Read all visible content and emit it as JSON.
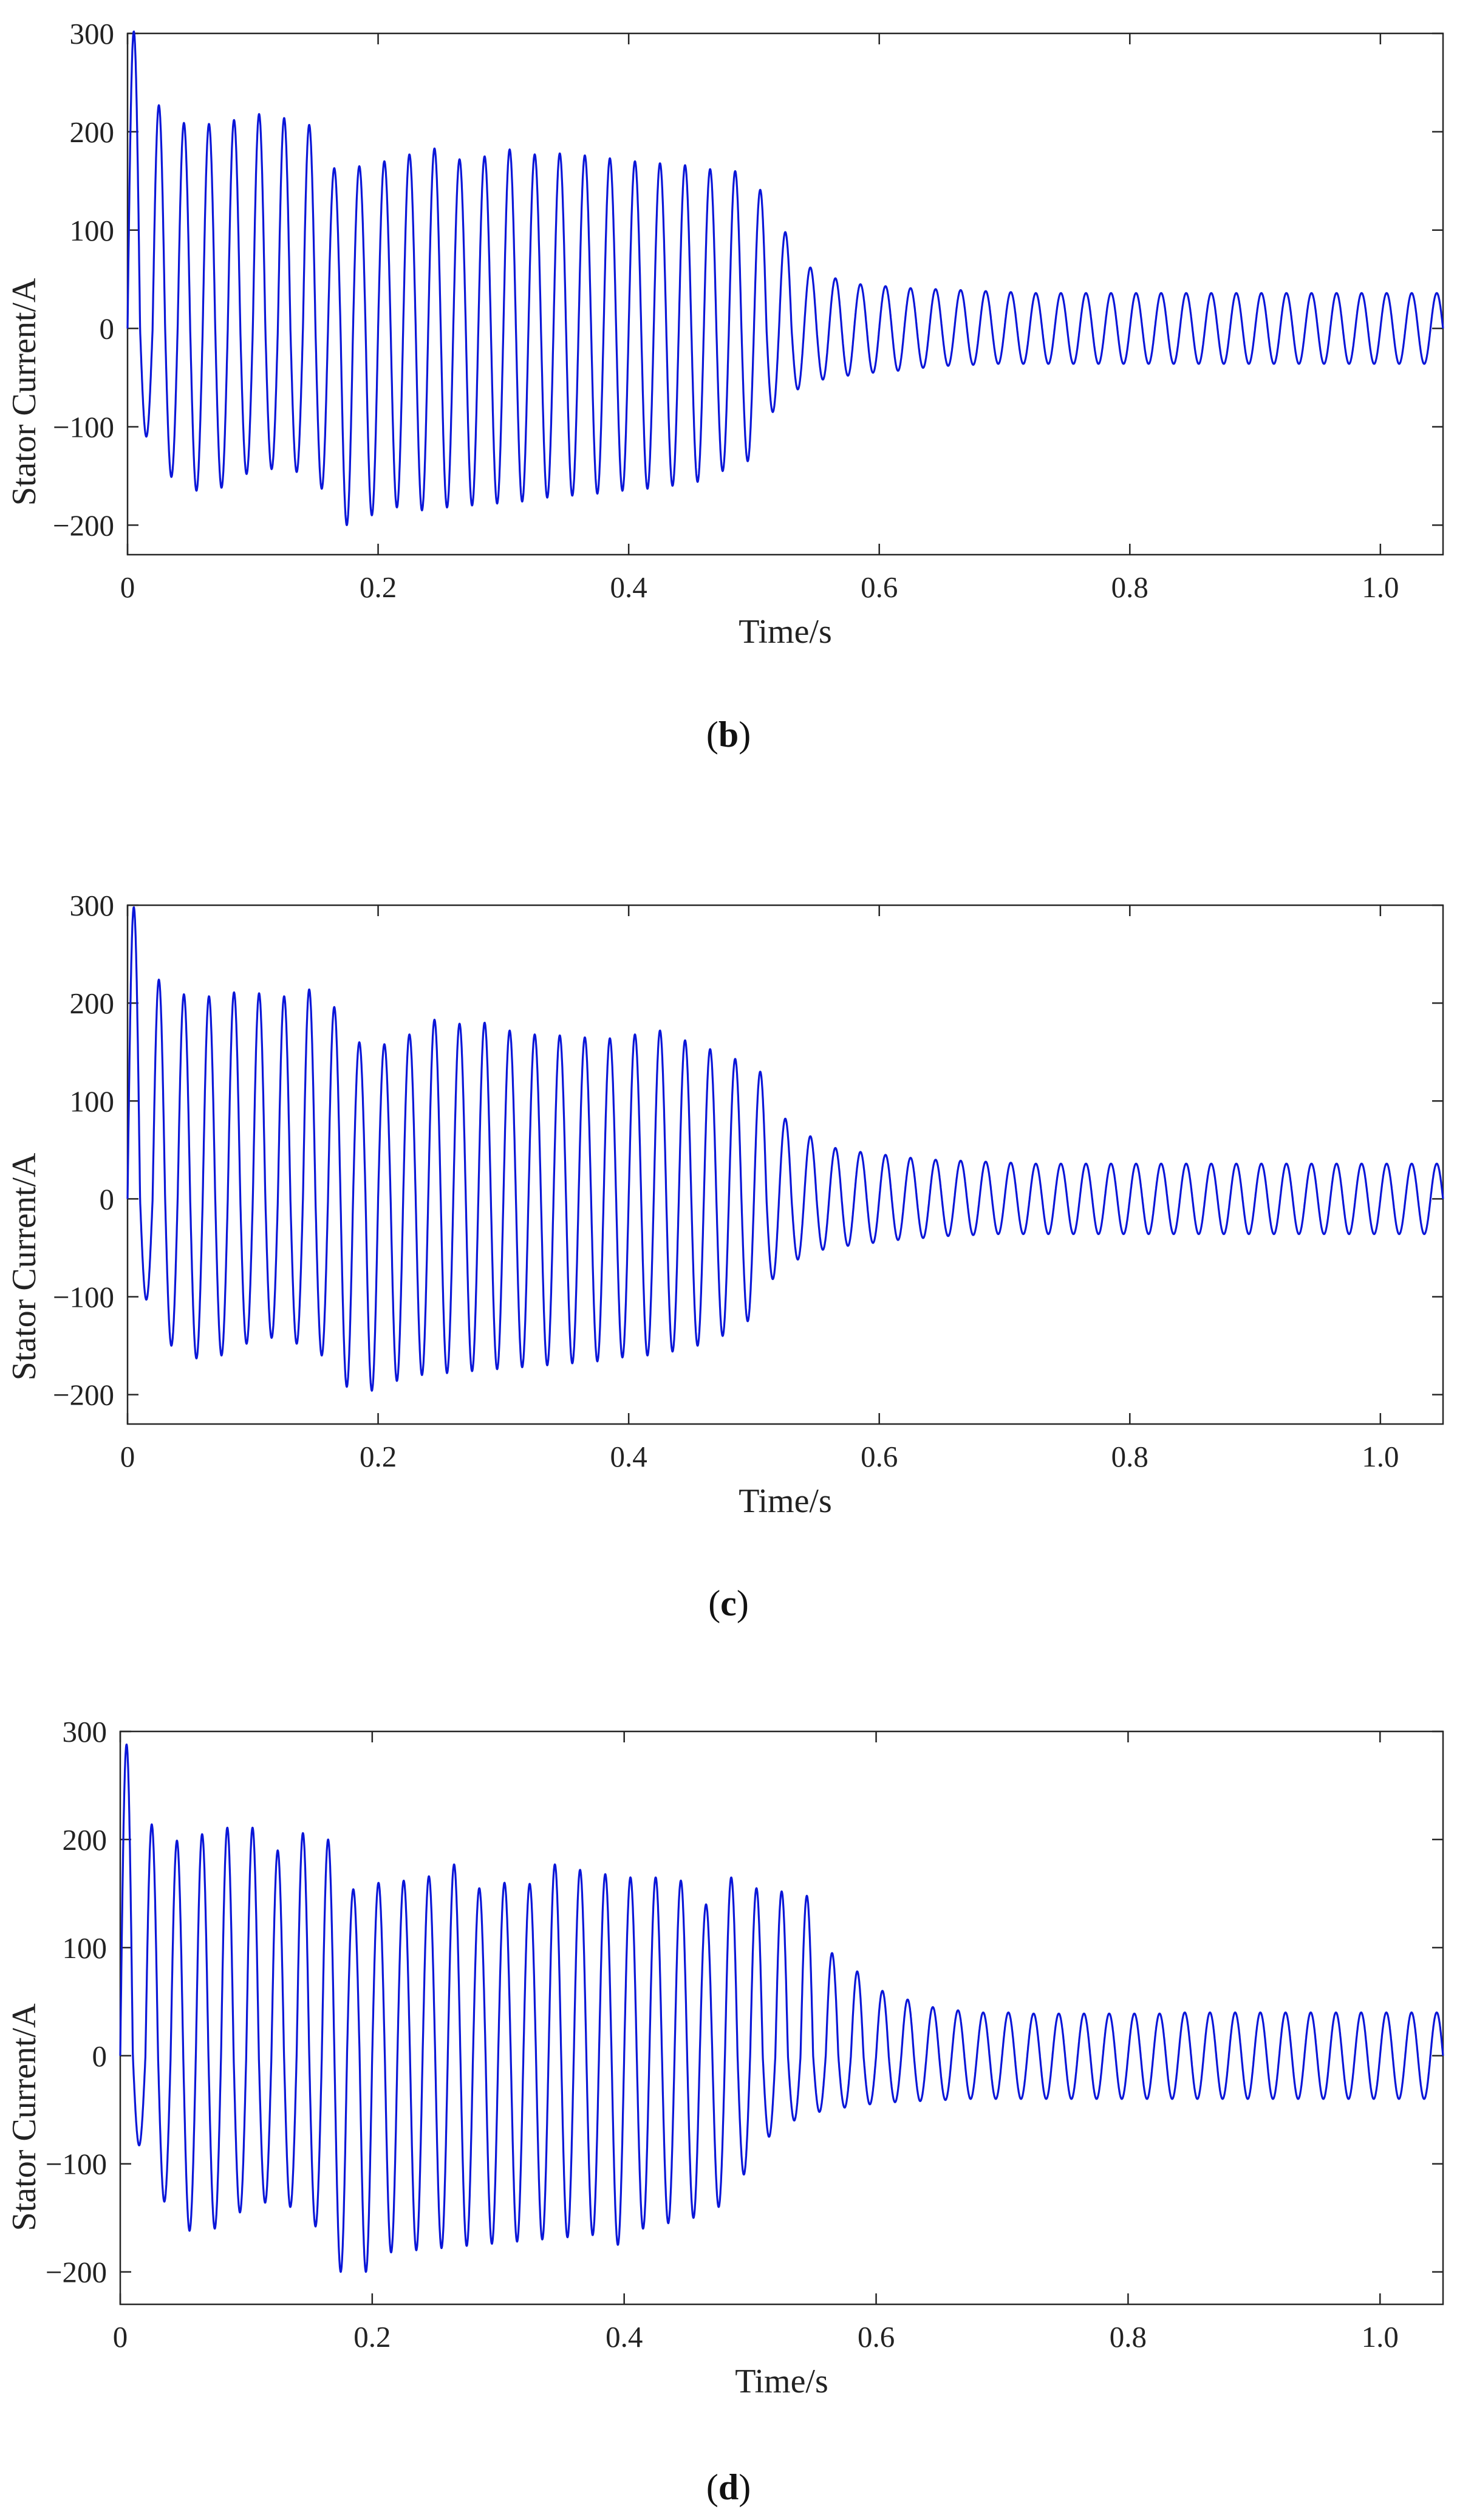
{
  "colors": {
    "series": "#0a16d8",
    "axis": "#262626",
    "background": "#ffffff"
  },
  "chart_data": [
    {
      "type": "line",
      "panel": "b",
      "caption_open": "(",
      "caption_letter": "b",
      "caption_close": ")",
      "title": "",
      "xlabel": "Time/s",
      "ylabel": "Stator Current/A",
      "xlim": [
        0,
        1.05
      ],
      "ylim": [
        -230,
        300
      ],
      "xticks": [
        0,
        0.2,
        0.4,
        0.6,
        0.8,
        1.0
      ],
      "xtick_labels": [
        "0",
        "0.2",
        "0.4",
        "0.6",
        "0.8",
        "1.0"
      ],
      "yticks": [
        -200,
        -100,
        0,
        100,
        200,
        300
      ],
      "ytick_labels": [
        "−200",
        "−100",
        "0",
        "100",
        "200",
        "300"
      ],
      "grid": false,
      "series": [
        {
          "name": "Stator Current",
          "frequency_hz": 50,
          "x_end": 1.05,
          "peaks": [
            302,
            227,
            209,
            208,
            212,
            218,
            214,
            207,
            163,
            165,
            170,
            177,
            183,
            172,
            175,
            182,
            177,
            178,
            176,
            173,
            170,
            168,
            166,
            162,
            160,
            141,
            98,
            62,
            51,
            45,
            43,
            41,
            40,
            39,
            38,
            37,
            36,
            36,
            36,
            36,
            36,
            36,
            36,
            36,
            36,
            36,
            36,
            36,
            36,
            36,
            36,
            36,
            36
          ],
          "troughs": [
            -110,
            -151,
            -165,
            -162,
            -148,
            -143,
            -146,
            -163,
            -200,
            -190,
            -182,
            -185,
            -182,
            -180,
            -178,
            -176,
            -172,
            -170,
            -168,
            -165,
            -163,
            -160,
            -156,
            -145,
            -135,
            -85,
            -62,
            -52,
            -48,
            -45,
            -43,
            -40,
            -38,
            -37,
            -36,
            -36,
            -36,
            -36,
            -36,
            -36,
            -36,
            -36,
            -36,
            -36,
            -36,
            -36,
            -36,
            -36,
            -36,
            -36,
            -36,
            -36,
            -36
          ]
        }
      ]
    },
    {
      "type": "line",
      "panel": "c",
      "caption_open": "(",
      "caption_letter": "c",
      "caption_close": ")",
      "title": "",
      "xlabel": "Time/s",
      "ylabel": "Stator Current/A",
      "xlim": [
        0,
        1.05
      ],
      "ylim": [
        -230,
        300
      ],
      "xticks": [
        0,
        0.2,
        0.4,
        0.6,
        0.8,
        1.0
      ],
      "xtick_labels": [
        "0",
        "0.2",
        "0.4",
        "0.6",
        "0.8",
        "1.0"
      ],
      "yticks": [
        -200,
        -100,
        0,
        100,
        200,
        300
      ],
      "ytick_labels": [
        "−200",
        "−100",
        "0",
        "100",
        "200",
        "300"
      ],
      "grid": false,
      "series": [
        {
          "name": "Stator Current",
          "frequency_hz": 50,
          "x_end": 1.05,
          "peaks": [
            298,
            224,
            209,
            207,
            211,
            210,
            207,
            214,
            196,
            160,
            158,
            168,
            183,
            179,
            180,
            172,
            168,
            167,
            165,
            164,
            168,
            172,
            162,
            153,
            143,
            130,
            82,
            64,
            52,
            48,
            45,
            42,
            40,
            39,
            38,
            37,
            36,
            36,
            36,
            36,
            36,
            36,
            36,
            36,
            36,
            36,
            36,
            36,
            36,
            36,
            36,
            36,
            36
          ],
          "troughs": [
            -103,
            -150,
            -163,
            -160,
            -148,
            -142,
            -148,
            -160,
            -192,
            -196,
            -186,
            -180,
            -178,
            -176,
            -174,
            -172,
            -170,
            -168,
            -166,
            -162,
            -160,
            -156,
            -150,
            -140,
            -125,
            -82,
            -62,
            -52,
            -48,
            -45,
            -42,
            -40,
            -38,
            -37,
            -36,
            -36,
            -36,
            -36,
            -36,
            -36,
            -36,
            -36,
            -36,
            -36,
            -36,
            -36,
            -36,
            -36,
            -36,
            -36,
            -36,
            -36,
            -36
          ]
        }
      ]
    },
    {
      "type": "line",
      "panel": "d",
      "caption_open": "(",
      "caption_letter": "d",
      "caption_close": ")",
      "title": "",
      "xlabel": "Time/s",
      "ylabel": "Stator Current/A",
      "xlim": [
        0,
        1.05
      ],
      "ylim": [
        -230,
        300
      ],
      "xticks": [
        0,
        0.2,
        0.4,
        0.6,
        0.8,
        1.0
      ],
      "xtick_labels": [
        "0",
        "0.2",
        "0.4",
        "0.6",
        "0.8",
        "1.0"
      ],
      "yticks": [
        -200,
        -100,
        0,
        100,
        200,
        300
      ],
      "ytick_labels": [
        "−200",
        "−100",
        "0",
        "100",
        "200",
        "300"
      ],
      "grid": false,
      "series": [
        {
          "name": "Stator Current",
          "frequency_hz": 50,
          "x_end": 1.05,
          "peaks": [
            288,
            214,
            199,
            205,
            211,
            211,
            190,
            206,
            200,
            154,
            160,
            162,
            166,
            177,
            155,
            160,
            159,
            177,
            172,
            168,
            165,
            165,
            162,
            140,
            165,
            155,
            152,
            148,
            95,
            78,
            60,
            52,
            45,
            42,
            40,
            40,
            39,
            39,
            39,
            39,
            39,
            39,
            40,
            40,
            40,
            40,
            40,
            40,
            40,
            40,
            40,
            40,
            40
          ],
          "troughs": [
            -83,
            -135,
            -162,
            -160,
            -145,
            -136,
            -140,
            -158,
            -200,
            -200,
            -182,
            -180,
            -178,
            -176,
            -174,
            -172,
            -170,
            -168,
            -166,
            -175,
            -160,
            -155,
            -150,
            -140,
            -110,
            -75,
            -60,
            -52,
            -48,
            -45,
            -43,
            -42,
            -41,
            -40,
            -40,
            -40,
            -40,
            -40,
            -40,
            -40,
            -40,
            -40,
            -40,
            -40,
            -40,
            -40,
            -40,
            -40,
            -40,
            -40,
            -40,
            -40,
            -40
          ]
        }
      ]
    }
  ]
}
